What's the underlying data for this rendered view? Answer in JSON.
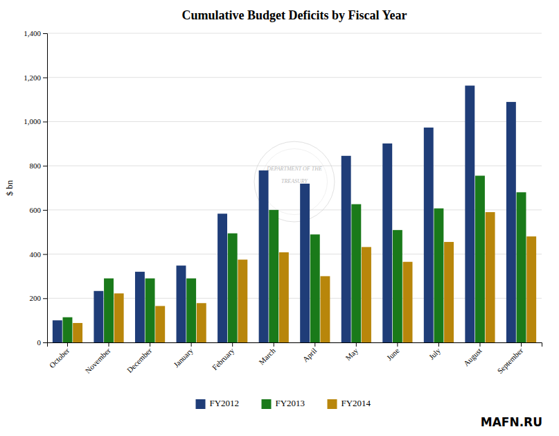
{
  "chart_data": {
    "type": "bar",
    "title": "Cumulative Budget Deficits by Fiscal Year",
    "ylabel": "$ bn",
    "categories": [
      "October",
      "November",
      "December",
      "January",
      "February",
      "March",
      "April",
      "May",
      "June",
      "July",
      "August",
      "September"
    ],
    "series": [
      {
        "name": "FY2012",
        "color": "#1F3D78",
        "values": [
          100,
          233,
          320,
          348,
          583,
          779,
          719,
          845,
          901,
          973,
          1163,
          1089
        ]
      },
      {
        "name": "FY2013",
        "color": "#1A7A1A",
        "values": [
          114,
          290,
          290,
          290,
          494,
          600,
          489,
          626,
          509,
          607,
          755,
          680
        ]
      },
      {
        "name": "FY2014",
        "color": "#B8860B",
        "values": [
          88,
          222,
          165,
          178,
          375,
          408,
          300,
          432,
          365,
          455,
          590,
          480
        ]
      }
    ],
    "ylim": [
      0,
      1400
    ],
    "yticks": [
      0,
      200,
      400,
      600,
      800,
      {
        "value": 1000,
        "label": "1,000"
      },
      {
        "value": 1200,
        "label": "1,200"
      },
      {
        "value": 1400,
        "label": "1,400"
      }
    ],
    "grid": true,
    "legend": "bottom",
    "annotations": [
      "DEPARTMENT OF THE",
      "TREASURY",
      "MAFN.RU"
    ]
  }
}
